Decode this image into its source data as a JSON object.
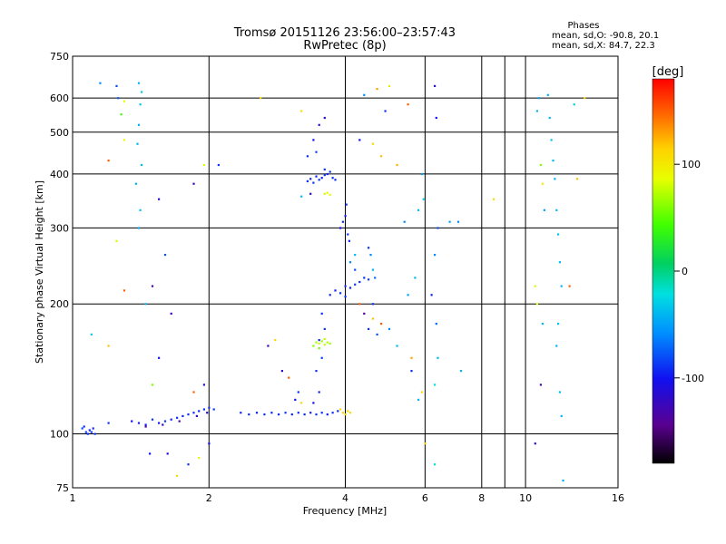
{
  "chart_data": {
    "type": "scatter",
    "title": "Tromsø 20151126 23:56:00–23:57:43",
    "subtitle": "RwPretec (8p)",
    "xlabel": "Frequency [MHz]",
    "ylabel": "Stationary phase Virtual Height [km]",
    "x_scale": "log",
    "y_scale": "log",
    "xlim": [
      1,
      16
    ],
    "ylim": [
      75,
      750
    ],
    "x_ticks": [
      "1",
      "2",
      "4",
      "6",
      "8",
      "10",
      "16"
    ],
    "y_ticks": [
      "75",
      "100",
      "200",
      "300",
      "400",
      "500",
      "600",
      "750"
    ],
    "grid": true,
    "legend": {
      "heading": "Phases",
      "lines": [
        "mean, sd,O: -90.8, 20.1",
        "mean, sd,X: 84.7, 22.3"
      ],
      "position": "top-right"
    },
    "colorbar": {
      "label": "[deg]",
      "range": [
        -180,
        180
      ],
      "ticks": [
        "100",
        "0",
        "-100"
      ],
      "tick_values": [
        100,
        0,
        -100
      ],
      "colormap": "rainbow"
    },
    "points": [
      [
        1.05,
        103,
        -80
      ],
      [
        1.07,
        101,
        -85
      ],
      [
        1.08,
        100,
        -90
      ],
      [
        1.09,
        102,
        -95
      ],
      [
        1.1,
        101,
        -88
      ],
      [
        1.11,
        103,
        -92
      ],
      [
        1.12,
        100,
        -86
      ],
      [
        1.06,
        104,
        -90
      ],
      [
        1.2,
        106,
        -90
      ],
      [
        1.35,
        107,
        -100
      ],
      [
        1.4,
        106,
        -95
      ],
      [
        1.45,
        105,
        -92
      ],
      [
        1.5,
        108,
        -90
      ],
      [
        1.55,
        106,
        -98
      ],
      [
        1.6,
        107,
        -88
      ],
      [
        1.65,
        108,
        -94
      ],
      [
        1.7,
        109,
        -90
      ],
      [
        1.75,
        110,
        -96
      ],
      [
        1.8,
        111,
        -92
      ],
      [
        1.85,
        112,
        -89
      ],
      [
        1.9,
        113,
        -93
      ],
      [
        1.95,
        114,
        -91
      ],
      [
        2.0,
        115,
        -90
      ],
      [
        2.05,
        114,
        -88
      ],
      [
        1.45,
        104,
        -140
      ],
      [
        1.58,
        105,
        -120
      ],
      [
        1.72,
        107,
        -130
      ],
      [
        1.88,
        110,
        -125
      ],
      [
        1.98,
        112,
        -110
      ],
      [
        2.35,
        112,
        -92
      ],
      [
        2.45,
        111,
        -90
      ],
      [
        2.55,
        112,
        -95
      ],
      [
        2.65,
        111,
        -89
      ],
      [
        2.75,
        112,
        -93
      ],
      [
        2.85,
        111,
        -91
      ],
      [
        2.95,
        112,
        -88
      ],
      [
        3.05,
        111,
        -94
      ],
      [
        3.15,
        112,
        -90
      ],
      [
        3.25,
        111,
        -92
      ],
      [
        3.35,
        112,
        -96
      ],
      [
        3.45,
        111,
        -89
      ],
      [
        3.55,
        112,
        -91
      ],
      [
        3.65,
        111,
        -95
      ],
      [
        3.75,
        112,
        -90
      ],
      [
        3.85,
        113,
        -92
      ],
      [
        3.4,
        118,
        -100
      ],
      [
        3.5,
        125,
        -95
      ],
      [
        3.45,
        140,
        -90
      ],
      [
        3.55,
        150,
        -85
      ],
      [
        3.5,
        165,
        -92
      ],
      [
        3.6,
        175,
        -88
      ],
      [
        3.55,
        190,
        -90
      ],
      [
        3.4,
        160,
        60
      ],
      [
        3.45,
        163,
        70
      ],
      [
        3.5,
        162,
        80
      ],
      [
        3.55,
        164,
        65
      ],
      [
        3.6,
        161,
        75
      ],
      [
        3.65,
        163,
        72
      ],
      [
        3.7,
        162,
        68
      ],
      [
        3.5,
        158,
        55
      ],
      [
        3.6,
        166,
        78
      ],
      [
        3.3,
        385,
        -90
      ],
      [
        3.35,
        390,
        -95
      ],
      [
        3.4,
        382,
        -88
      ],
      [
        3.45,
        395,
        -92
      ],
      [
        3.5,
        388,
        -90
      ],
      [
        3.55,
        392,
        -97
      ],
      [
        3.6,
        398,
        -89
      ],
      [
        3.65,
        400,
        -93
      ],
      [
        3.7,
        405,
        -90
      ],
      [
        3.75,
        392,
        -94
      ],
      [
        3.8,
        388,
        -91
      ],
      [
        3.6,
        360,
        80
      ],
      [
        3.65,
        362,
        90
      ],
      [
        3.7,
        358,
        85
      ],
      [
        3.9,
        300,
        -100
      ],
      [
        3.95,
        310,
        -92
      ],
      [
        4.0,
        320,
        -95
      ],
      [
        4.02,
        340,
        -90
      ],
      [
        4.05,
        290,
        -88
      ],
      [
        4.08,
        280,
        -95
      ],
      [
        4.0,
        220,
        -90
      ],
      [
        4.1,
        218,
        -95
      ],
      [
        4.2,
        222,
        -88
      ],
      [
        4.3,
        225,
        -92
      ],
      [
        4.4,
        230,
        -90
      ],
      [
        4.5,
        228,
        -85
      ],
      [
        3.7,
        210,
        -92
      ],
      [
        3.8,
        215,
        -95
      ],
      [
        3.9,
        212,
        -90
      ],
      [
        4.0,
        208,
        -88
      ],
      [
        3.95,
        112,
        110
      ],
      [
        4.0,
        111,
        115
      ],
      [
        4.05,
        113,
        112
      ],
      [
        4.1,
        112,
        108
      ],
      [
        3.9,
        114,
        105
      ],
      [
        1.4,
        650,
        -40
      ],
      [
        1.42,
        620,
        -30
      ],
      [
        1.41,
        580,
        -35
      ],
      [
        1.4,
        520,
        -45
      ],
      [
        1.39,
        470,
        -40
      ],
      [
        1.42,
        420,
        -38
      ],
      [
        1.38,
        380,
        -42
      ],
      [
        1.41,
        330,
        -36
      ],
      [
        1.4,
        300,
        -44
      ],
      [
        1.25,
        640,
        -80
      ],
      [
        1.26,
        600,
        -75
      ],
      [
        1.28,
        550,
        40
      ],
      [
        1.3,
        480,
        90
      ],
      [
        6.3,
        640,
        -120
      ],
      [
        6.35,
        540,
        -100
      ],
      [
        6.4,
        300,
        -80
      ],
      [
        6.3,
        260,
        -60
      ],
      [
        6.2,
        210,
        -95
      ],
      [
        6.35,
        180,
        -70
      ],
      [
        6.4,
        150,
        -40
      ],
      [
        6.3,
        130,
        -20
      ],
      [
        5.9,
        400,
        -50
      ],
      [
        5.95,
        350,
        -30
      ],
      [
        5.8,
        330,
        -40
      ],
      [
        7.1,
        310,
        -60
      ],
      [
        6.8,
        310,
        -50
      ],
      [
        11.2,
        610,
        -45
      ],
      [
        11.3,
        540,
        -40
      ],
      [
        11.4,
        480,
        -35
      ],
      [
        11.5,
        430,
        -38
      ],
      [
        11.6,
        390,
        -42
      ],
      [
        11.7,
        330,
        -40
      ],
      [
        11.8,
        290,
        -36
      ],
      [
        11.9,
        250,
        -38
      ],
      [
        12.0,
        220,
        -40
      ],
      [
        11.8,
        180,
        -35
      ],
      [
        11.7,
        160,
        -42
      ],
      [
        11.9,
        125,
        -38
      ],
      [
        12.0,
        110,
        -40
      ],
      [
        12.1,
        78,
        -44
      ],
      [
        10.6,
        560,
        -40
      ],
      [
        10.7,
        600,
        -50
      ],
      [
        10.8,
        420,
        60
      ],
      [
        10.9,
        380,
        100
      ],
      [
        11.0,
        330,
        -50
      ],
      [
        10.5,
        220,
        80
      ],
      [
        10.6,
        200,
        90
      ],
      [
        10.9,
        180,
        -40
      ],
      [
        10.5,
        95,
        -120
      ],
      [
        10.8,
        130,
        -130
      ],
      [
        13.5,
        600,
        110
      ],
      [
        13.0,
        390,
        120
      ],
      [
        12.5,
        220,
        150
      ],
      [
        12.8,
        580,
        -30
      ],
      [
        2.6,
        600,
        110
      ],
      [
        3.2,
        560,
        105
      ],
      [
        3.6,
        540,
        -110
      ],
      [
        4.3,
        480,
        -100
      ],
      [
        4.6,
        470,
        110
      ],
      [
        4.8,
        440,
        120
      ],
      [
        5.2,
        420,
        125
      ],
      [
        4.4,
        610,
        -60
      ],
      [
        4.7,
        630,
        130
      ],
      [
        5.0,
        640,
        100
      ],
      [
        4.9,
        560,
        -90
      ],
      [
        5.5,
        580,
        150
      ],
      [
        2.1,
        420,
        -90
      ],
      [
        1.85,
        380,
        -130
      ],
      [
        1.95,
        420,
        80
      ],
      [
        1.15,
        650,
        -60
      ],
      [
        1.3,
        590,
        90
      ],
      [
        1.2,
        430,
        150
      ],
      [
        1.25,
        280,
        80
      ],
      [
        1.3,
        215,
        150
      ],
      [
        1.2,
        160,
        120
      ],
      [
        1.1,
        170,
        -30
      ],
      [
        1.55,
        350,
        -120
      ],
      [
        1.6,
        260,
        -80
      ],
      [
        1.5,
        220,
        -130
      ],
      [
        1.45,
        200,
        -40
      ],
      [
        1.65,
        190,
        -130
      ],
      [
        1.55,
        150,
        -100
      ],
      [
        1.5,
        130,
        60
      ],
      [
        1.48,
        90,
        -100
      ],
      [
        1.62,
        90,
        -110
      ],
      [
        1.7,
        80,
        110
      ],
      [
        1.8,
        85,
        -90
      ],
      [
        1.9,
        88,
        90
      ],
      [
        2.0,
        95,
        -100
      ],
      [
        1.95,
        130,
        -120
      ],
      [
        1.85,
        125,
        150
      ],
      [
        2.7,
        160,
        -130
      ],
      [
        2.8,
        165,
        110
      ],
      [
        2.9,
        140,
        -120
      ],
      [
        3.0,
        135,
        150
      ],
      [
        3.1,
        120,
        -100
      ],
      [
        3.15,
        125,
        -90
      ],
      [
        3.2,
        118,
        110
      ],
      [
        3.3,
        440,
        -90
      ],
      [
        3.4,
        480,
        -100
      ],
      [
        3.5,
        520,
        -110
      ],
      [
        3.45,
        450,
        -85
      ],
      [
        3.6,
        410,
        -88
      ],
      [
        3.35,
        360,
        -120
      ],
      [
        3.2,
        355,
        -40
      ],
      [
        4.3,
        200,
        150
      ],
      [
        4.4,
        190,
        -140
      ],
      [
        4.5,
        175,
        -90
      ],
      [
        4.6,
        185,
        120
      ],
      [
        4.7,
        170,
        -80
      ],
      [
        4.8,
        180,
        150
      ],
      [
        5.0,
        175,
        -60
      ],
      [
        5.2,
        160,
        -40
      ],
      [
        4.5,
        270,
        -90
      ],
      [
        4.55,
        260,
        -60
      ],
      [
        4.6,
        240,
        -40
      ],
      [
        4.65,
        230,
        -70
      ],
      [
        4.6,
        200,
        -90
      ],
      [
        4.2,
        260,
        -40
      ],
      [
        4.1,
        250,
        -60
      ],
      [
        4.2,
        240,
        -80
      ],
      [
        5.6,
        140,
        -90
      ],
      [
        5.8,
        120,
        -40
      ],
      [
        5.9,
        125,
        110
      ],
      [
        5.6,
        150,
        130
      ],
      [
        5.5,
        210,
        -50
      ],
      [
        6.0,
        95,
        110
      ],
      [
        6.3,
        85,
        -20
      ],
      [
        7.2,
        140,
        -40
      ],
      [
        8.5,
        350,
        110
      ],
      [
        5.7,
        230,
        -40
      ],
      [
        5.4,
        310,
        -60
      ]
    ]
  }
}
